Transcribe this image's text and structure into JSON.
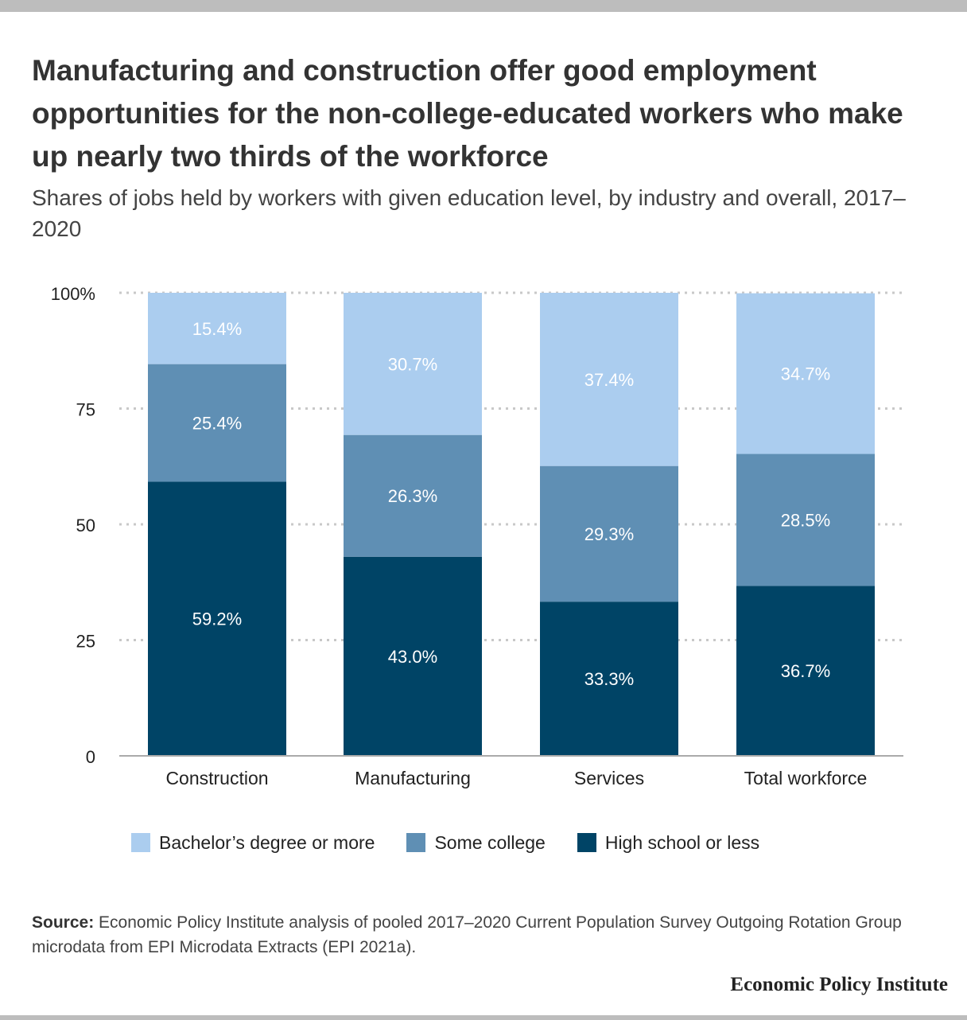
{
  "title": "Manufacturing and construction offer good employment opportunities for the non-college-educated workers who make up nearly two thirds of the workforce",
  "subtitle": "Shares of jobs held by workers with given education level, by industry and overall, 2017–2020",
  "colors": {
    "bachelors": "#abcdef",
    "some_college": "#5f8fb4",
    "high_school": "#004466",
    "grid": "#c8c8c8",
    "axis": "#aaaaaa",
    "bar_label": "#ffffff"
  },
  "chart_data": {
    "type": "bar",
    "stacked": true,
    "categories": [
      "Construction",
      "Manufacturing",
      "Services",
      "Total workforce"
    ],
    "series": [
      {
        "name": "High school or less",
        "values": [
          59.2,
          43.0,
          33.3,
          36.7
        ],
        "labels": [
          "59.2%",
          "43.0%",
          "33.3%",
          "36.7%"
        ]
      },
      {
        "name": "Some college",
        "values": [
          25.4,
          26.3,
          29.3,
          28.5
        ],
        "labels": [
          "25.4%",
          "26.3%",
          "29.3%",
          "28.5%"
        ]
      },
      {
        "name": "Bachelor’s degree or more",
        "values": [
          15.4,
          30.7,
          37.4,
          34.7
        ],
        "labels": [
          "15.4%",
          "30.7%",
          "37.4%",
          "34.7%"
        ]
      }
    ],
    "y_ticks": [
      "0",
      "25",
      "50",
      "75",
      "100%"
    ],
    "ylim": [
      0,
      100
    ],
    "grid": true,
    "legend_placement": "bottom"
  },
  "legend": [
    {
      "label": "Bachelor’s degree or more",
      "color": "#abcdef"
    },
    {
      "label": "Some college",
      "color": "#5f8fb4"
    },
    {
      "label": "High school or less",
      "color": "#004466"
    }
  ],
  "source": {
    "label": "Source:",
    "text": "Economic Policy Institute analysis of pooled 2017–2020 Current Population Survey Outgoing Rotation Group microdata from EPI Microdata Extracts (EPI 2021a)."
  },
  "brand": "Economic Policy Institute"
}
